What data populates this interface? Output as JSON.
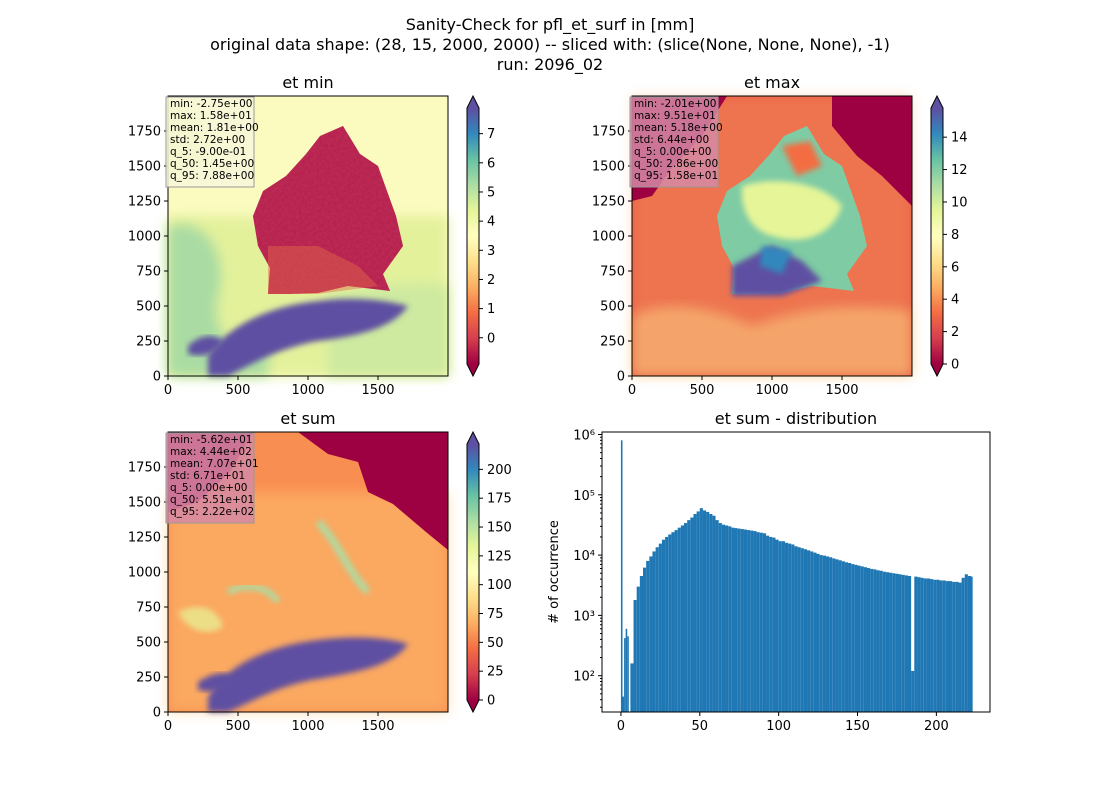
{
  "figure": {
    "title_lines": [
      "Sanity-Check for pfl_et_surf in [mm]",
      "original data shape: (28, 15, 2000, 2000) -- sliced with: (slice(None, None, None), -1)",
      "run: 2096_02"
    ]
  },
  "chart_data": [
    {
      "type": "heatmap",
      "title": "et min",
      "xlim": [
        0,
        2000
      ],
      "ylim": [
        0,
        2000
      ],
      "xticks": [
        0,
        500,
        1000,
        1500
      ],
      "yticks": [
        0,
        250,
        500,
        750,
        1000,
        1250,
        1500,
        1750
      ],
      "colorbar": {
        "ticks": [
          0,
          1,
          2,
          3,
          4,
          5,
          6,
          7
        ],
        "range": [
          -0.9,
          7.88
        ],
        "extend": "both",
        "colormap": "Spectral"
      },
      "stats": [
        "min: -2.75e+00",
        "max: 1.58e+01",
        "mean: 1.81e+00",
        "std: 2.72e+00",
        "q_5: -9.00e-01",
        "q_50: 1.45e+00",
        "q_95: 7.88e+00"
      ],
      "stats_box_color": "#f7f7d9"
    },
    {
      "type": "heatmap",
      "title": "et max",
      "xlim": [
        0,
        2000
      ],
      "ylim": [
        0,
        2000
      ],
      "xticks": [
        0,
        500,
        1000,
        1500
      ],
      "yticks": [
        0,
        250,
        500,
        750,
        1000,
        1250,
        1500,
        1750
      ],
      "colorbar": {
        "ticks": [
          0,
          2,
          4,
          6,
          8,
          10,
          12,
          14
        ],
        "range": [
          0,
          15.8
        ],
        "extend": "both",
        "colormap": "Spectral"
      },
      "stats": [
        "min: -2.01e+00",
        "max: 9.51e+01",
        "mean: 5.18e+00",
        "std: 6.44e+00",
        "q_5: 0.00e+00",
        "q_50: 2.86e+00",
        "q_95: 1.58e+01"
      ],
      "stats_box_color": "#d58aa4"
    },
    {
      "type": "heatmap",
      "title": "et sum",
      "xlim": [
        0,
        2000
      ],
      "ylim": [
        0,
        2000
      ],
      "xticks": [
        0,
        500,
        1000,
        1500
      ],
      "yticks": [
        0,
        250,
        500,
        750,
        1000,
        1250,
        1500,
        1750
      ],
      "colorbar": {
        "ticks": [
          0,
          25,
          50,
          75,
          100,
          125,
          150,
          175,
          200
        ],
        "range": [
          0,
          222
        ],
        "extend": "both",
        "colormap": "Spectral"
      },
      "stats": [
        "min: -5.62e+01",
        "max: 4.44e+02",
        "mean: 7.07e+01",
        "std: 6.71e+01",
        "q_5: 0.00e+00",
        "q_50: 5.51e+01",
        "q_95: 2.22e+02"
      ],
      "stats_box_color": "#d58aa4"
    },
    {
      "type": "bar",
      "title": "et sum - distribution",
      "ylabel": "# of occurrence",
      "yscale": "log",
      "xlim": [
        -12,
        234
      ],
      "ylim": [
        25,
        1100000
      ],
      "xticks": [
        0,
        50,
        100,
        150,
        200
      ],
      "yticks": [
        100,
        1000,
        10000,
        100000,
        1000000
      ],
      "ytick_labels": [
        "10²",
        "10³",
        "10⁴",
        "10⁵",
        "10⁶"
      ],
      "bar_color": "#1f77b4",
      "bin_width": 1.11,
      "bars": [
        [
          0,
          800000
        ],
        [
          1,
          45
        ],
        [
          2,
          420
        ],
        [
          3,
          600
        ],
        [
          4,
          450
        ],
        [
          6,
          160
        ],
        [
          8,
          1800
        ],
        [
          10,
          3000
        ],
        [
          12,
          4500
        ],
        [
          14,
          6200
        ],
        [
          16,
          8000
        ],
        [
          18,
          9500
        ],
        [
          20,
          11500
        ],
        [
          22,
          13500
        ],
        [
          24,
          15500
        ],
        [
          26,
          18000
        ],
        [
          28,
          20000
        ],
        [
          30,
          22000
        ],
        [
          32,
          24000
        ],
        [
          34,
          26000
        ],
        [
          36,
          28500
        ],
        [
          38,
          31000
        ],
        [
          40,
          34000
        ],
        [
          42,
          38000
        ],
        [
          44,
          42000
        ],
        [
          46,
          48000
        ],
        [
          48,
          53000
        ],
        [
          50,
          60000
        ],
        [
          52,
          55000
        ],
        [
          54,
          52000
        ],
        [
          56,
          48000
        ],
        [
          58,
          45000
        ],
        [
          60,
          38000
        ],
        [
          62,
          34000
        ],
        [
          64,
          32000
        ],
        [
          66,
          31000
        ],
        [
          68,
          30000
        ],
        [
          70,
          28500
        ],
        [
          72,
          28000
        ],
        [
          74,
          27500
        ],
        [
          76,
          27000
        ],
        [
          78,
          26500
        ],
        [
          80,
          26000
        ],
        [
          82,
          25500
        ],
        [
          84,
          25000
        ],
        [
          86,
          24000
        ],
        [
          88,
          23500
        ],
        [
          90,
          23000
        ],
        [
          92,
          21000
        ],
        [
          94,
          20000
        ],
        [
          96,
          19500
        ],
        [
          98,
          18000
        ],
        [
          100,
          17000
        ],
        [
          102,
          17000
        ],
        [
          104,
          16000
        ],
        [
          106,
          15500
        ],
        [
          108,
          15000
        ],
        [
          110,
          14000
        ],
        [
          112,
          13500
        ],
        [
          114,
          13000
        ],
        [
          116,
          12500
        ],
        [
          118,
          12000
        ],
        [
          120,
          11500
        ],
        [
          122,
          11000
        ],
        [
          124,
          10500
        ],
        [
          126,
          10000
        ],
        [
          128,
          9800
        ],
        [
          130,
          9500
        ],
        [
          132,
          9200
        ],
        [
          134,
          8800
        ],
        [
          136,
          8500
        ],
        [
          138,
          8200
        ],
        [
          140,
          7900
        ],
        [
          142,
          7600
        ],
        [
          144,
          7400
        ],
        [
          146,
          7100
        ],
        [
          148,
          6900
        ],
        [
          150,
          6700
        ],
        [
          152,
          6500
        ],
        [
          154,
          6300
        ],
        [
          156,
          6100
        ],
        [
          158,
          5900
        ],
        [
          160,
          5800
        ],
        [
          162,
          5600
        ],
        [
          164,
          5500
        ],
        [
          166,
          5300
        ],
        [
          168,
          5200
        ],
        [
          170,
          5100
        ],
        [
          172,
          5000
        ],
        [
          174,
          4900
        ],
        [
          176,
          4800
        ],
        [
          178,
          4700
        ],
        [
          180,
          4600
        ],
        [
          182,
          4500
        ],
        [
          184,
          120
        ],
        [
          186,
          4400
        ],
        [
          188,
          4300
        ],
        [
          190,
          4200
        ],
        [
          192,
          4100
        ],
        [
          194,
          4100
        ],
        [
          196,
          4000
        ],
        [
          198,
          3900
        ],
        [
          200,
          3900
        ],
        [
          202,
          3800
        ],
        [
          204,
          3800
        ],
        [
          206,
          3700
        ],
        [
          208,
          3700
        ],
        [
          210,
          3600
        ],
        [
          212,
          3600
        ],
        [
          214,
          3500
        ],
        [
          216,
          4200
        ],
        [
          218,
          4800
        ],
        [
          220,
          4500
        ],
        [
          221,
          4400
        ]
      ]
    }
  ]
}
